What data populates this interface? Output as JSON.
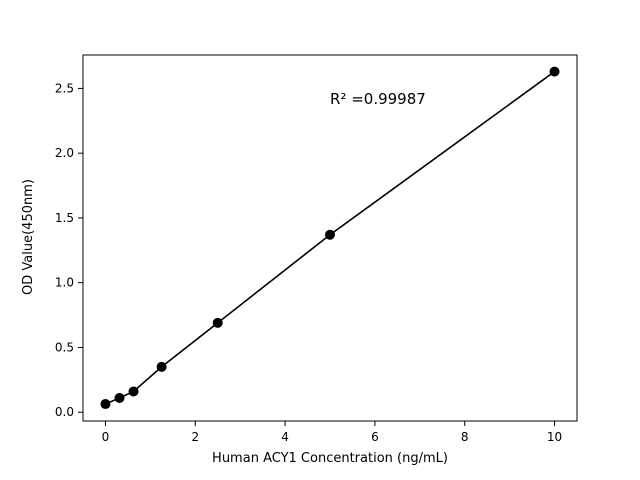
{
  "chart_data": {
    "type": "scatter",
    "title": "",
    "xlabel": "Human ACY1 Concentration (ng/mL)",
    "ylabel": "OD Value(450nm)",
    "annotation": {
      "text": "R² =0.99987",
      "x": 5.0,
      "y": 2.38
    },
    "x": [
      0,
      0.313,
      0.625,
      1.25,
      2.5,
      5,
      10
    ],
    "y": [
      0.063,
      0.11,
      0.16,
      0.35,
      0.69,
      1.37,
      2.63
    ],
    "xticks": [
      0,
      2,
      4,
      6,
      8,
      10
    ],
    "yticks": [
      0.0,
      0.5,
      1.0,
      1.5,
      2.0,
      2.5
    ],
    "xlim": [
      -0.5,
      10.5
    ],
    "ylim": [
      -0.068,
      2.758
    ],
    "legend": "none",
    "grid": false,
    "line_color": "#000000",
    "marker_color": "#000000",
    "marker_radius": 5,
    "background": "#ffffff"
  }
}
